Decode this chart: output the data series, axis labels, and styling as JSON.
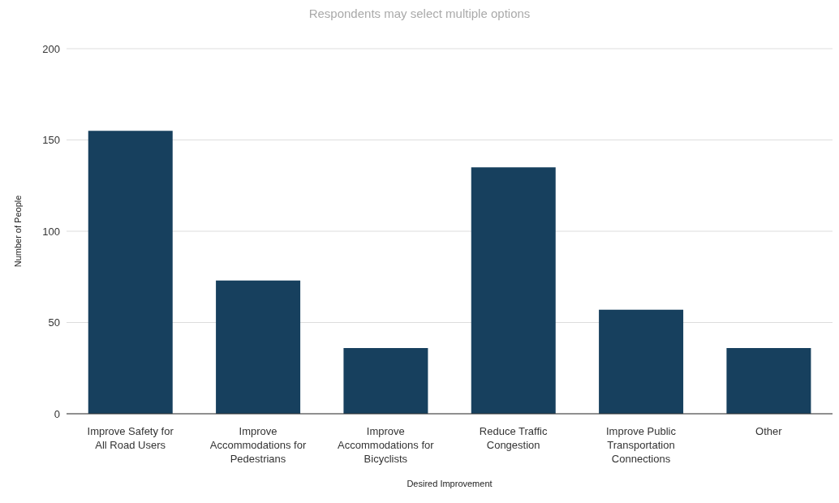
{
  "chart_data": {
    "type": "bar",
    "title": "Respondents may select multiple options",
    "xlabel": "Desired Improvement",
    "ylabel": "Number of People",
    "categories": [
      "Improve Safety for All Road Users",
      "Improve Accommodations for Pedestrians",
      "Improve Accommodations for Bicyclists",
      "Reduce Traffic Congestion",
      "Improve Public Transportation Connections",
      "Other"
    ],
    "values": [
      155,
      73,
      36,
      135,
      57,
      36
    ],
    "color": "#17405e",
    "ylim": [
      0,
      200
    ],
    "yticks": [
      0,
      50,
      100,
      150,
      200
    ],
    "grid": "y"
  }
}
